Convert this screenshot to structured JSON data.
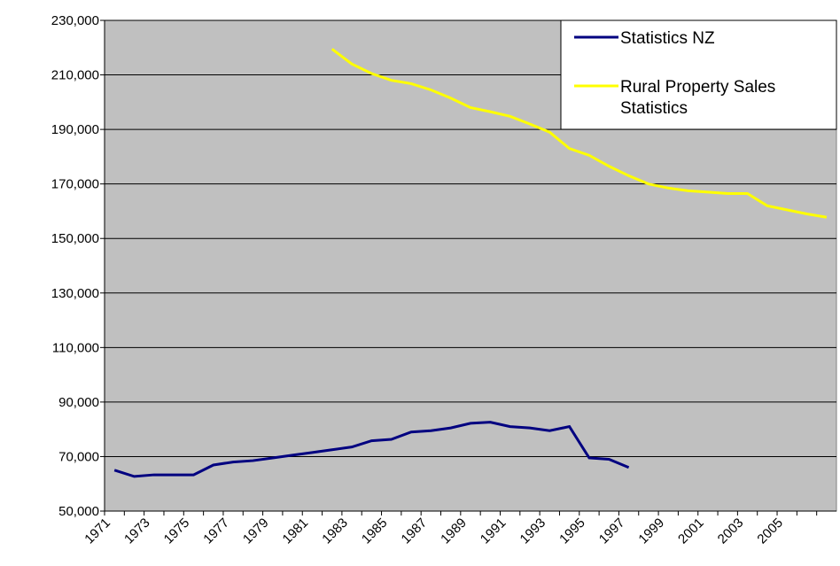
{
  "chart_data": {
    "type": "line",
    "categories": [
      "1971",
      null,
      "1973",
      null,
      "1975",
      null,
      "1977",
      null,
      "1979",
      null,
      "1981",
      null,
      "1983",
      null,
      "1985",
      null,
      "1987",
      null,
      "1989",
      null,
      "1991",
      null,
      "1993",
      null,
      "1995",
      null,
      "1997",
      null,
      "1999",
      null,
      "2001",
      null,
      "2003",
      null,
      "2005",
      null,
      null
    ],
    "series": [
      {
        "name": "Statistics NZ",
        "color": "#000080",
        "values": [
          65000,
          62700,
          63300,
          63300,
          63300,
          66900,
          68000,
          68500,
          69500,
          70500,
          71500,
          72500,
          73500,
          75800,
          76300,
          79000,
          79500,
          80500,
          82200,
          82600,
          81000,
          80500,
          79500,
          81000,
          69500,
          69000,
          66000,
          null,
          null,
          null,
          null,
          null,
          null,
          null,
          null,
          null,
          null
        ]
      },
      {
        "name": "Rural Property Sales Statistics",
        "color": "#ffff00",
        "values": [
          null,
          null,
          null,
          null,
          null,
          null,
          null,
          null,
          null,
          null,
          null,
          219500,
          214000,
          210500,
          208000,
          206800,
          204500,
          201500,
          198000,
          196500,
          194800,
          192000,
          189000,
          183000,
          180500,
          176500,
          173000,
          170000,
          168500,
          167500,
          167000,
          166500,
          166500,
          162000,
          160500,
          159000,
          157800
        ]
      }
    ],
    "ylim": [
      50000,
      230000
    ],
    "yticks": [
      {
        "value": 50000,
        "label": "50,000"
      },
      {
        "value": 70000,
        "label": "70,000"
      },
      {
        "value": 90000,
        "label": "90,000"
      },
      {
        "value": 110000,
        "label": "110,000"
      },
      {
        "value": 130000,
        "label": "130,000"
      },
      {
        "value": 150000,
        "label": "150,000"
      },
      {
        "value": 170000,
        "label": "170,000"
      },
      {
        "value": 190000,
        "label": "190,000"
      },
      {
        "value": 210000,
        "label": "210,000"
      },
      {
        "value": 230000,
        "label": "230,000"
      }
    ],
    "grid": true,
    "legend": "top-right",
    "background": "#c0c0c0"
  }
}
